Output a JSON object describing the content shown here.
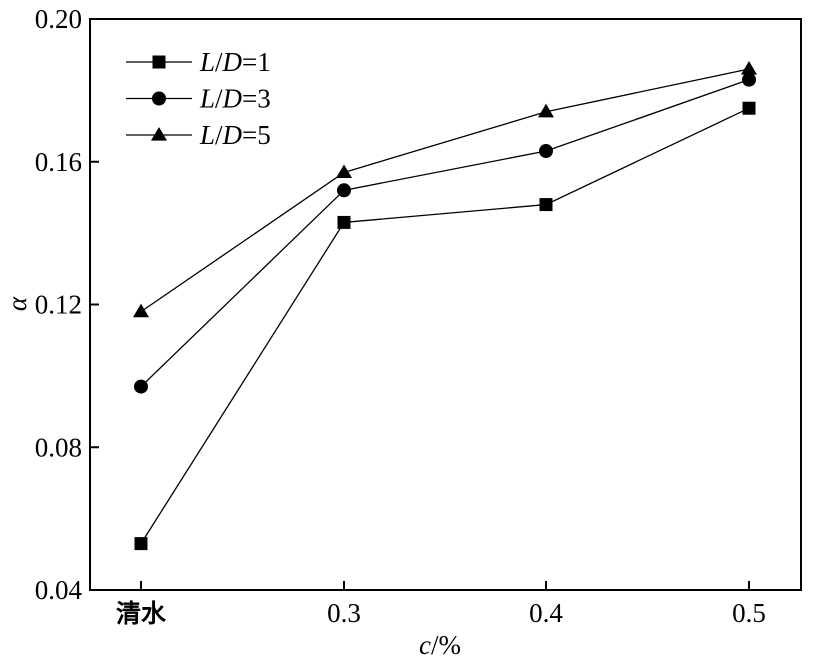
{
  "chart_data": {
    "type": "line",
    "categories": [
      "清水",
      "0.3",
      "0.4",
      "0.5"
    ],
    "xlabel": {
      "italic": "c",
      "rest": "/%"
    },
    "ylabel": "α",
    "ylim": [
      0.04,
      0.2
    ],
    "yticks": [
      "0.04",
      "0.08",
      "0.12",
      "0.16",
      "0.20"
    ],
    "grid": false,
    "legend_position": "top-left",
    "series": [
      {
        "name": "L/D=1",
        "label_italic_1": "L",
        "label_sep": "/",
        "label_italic_2": "D",
        "label_rest": "=1",
        "marker": "square",
        "values": [
          0.053,
          0.143,
          0.148,
          0.175
        ]
      },
      {
        "name": "L/D=3",
        "label_italic_1": "L",
        "label_sep": "/",
        "label_italic_2": "D",
        "label_rest": "=3",
        "marker": "circle",
        "values": [
          0.097,
          0.152,
          0.163,
          0.183
        ]
      },
      {
        "name": "L/D=5",
        "label_italic_1": "L",
        "label_sep": "/",
        "label_italic_2": "D",
        "label_rest": "=5",
        "marker": "triangle",
        "values": [
          0.118,
          0.157,
          0.174,
          0.186
        ]
      }
    ]
  }
}
